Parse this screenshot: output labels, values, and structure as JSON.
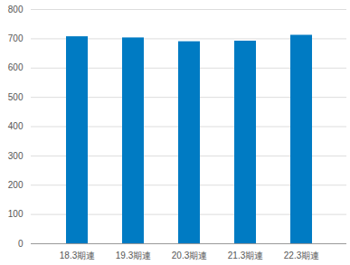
{
  "chart_data": {
    "type": "bar",
    "categories": [
      "18.3期連",
      "19.3期連",
      "20.3期連",
      "21.3期連",
      "22.3期連"
    ],
    "values": [
      707,
      703,
      690,
      692,
      712
    ],
    "color": "#007bc3",
    "ylim": [
      0,
      800
    ],
    "yticks": [
      0,
      100,
      200,
      300,
      400,
      500,
      600,
      700,
      800
    ],
    "grid": true
  }
}
